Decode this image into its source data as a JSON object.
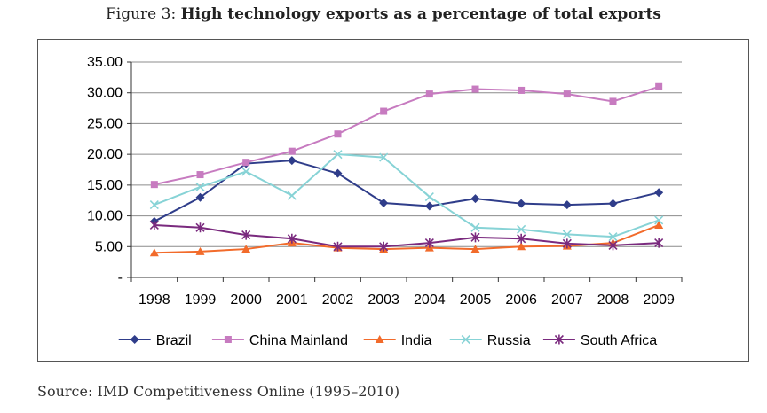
{
  "figure": {
    "caption_prefix": "Figure 3:",
    "caption_title": "High technology exports as a percentage of total exports",
    "source": "Source: IMD Competitiveness Online (1995–2010)"
  },
  "chart_data": {
    "type": "line",
    "title": "High technology exports as a percentage of total exports",
    "xlabel": "",
    "ylabel": "",
    "categories": [
      "1998",
      "1999",
      "2000",
      "2001",
      "2002",
      "2003",
      "2004",
      "2005",
      "2006",
      "2007",
      "2008",
      "2009"
    ],
    "ylim": [
      0,
      35
    ],
    "y_ticks": [
      0,
      5,
      10,
      15,
      20,
      25,
      30,
      35
    ],
    "y_tick_labels": [
      "-",
      "5.00",
      "10.00",
      "15.00",
      "20.00",
      "25.00",
      "30.00",
      "35.00"
    ],
    "grid": true,
    "legend_position": "bottom",
    "series": [
      {
        "name": "Brazil",
        "color": "#2f3d8a",
        "marker": "diamond",
        "values": [
          9.1,
          13.0,
          18.5,
          19.0,
          16.9,
          12.1,
          11.6,
          12.8,
          12.0,
          11.8,
          12.0,
          13.8
        ]
      },
      {
        "name": "China Mainland",
        "color": "#c77bc0",
        "marker": "square",
        "values": [
          15.1,
          16.7,
          18.7,
          20.5,
          23.3,
          27.0,
          29.8,
          30.6,
          30.4,
          29.8,
          28.6,
          31.0
        ]
      },
      {
        "name": "India",
        "color": "#f26b2b",
        "marker": "triangle",
        "values": [
          4.0,
          4.2,
          4.6,
          5.6,
          4.8,
          4.6,
          4.8,
          4.6,
          5.0,
          5.1,
          5.6,
          8.5
        ]
      },
      {
        "name": "Russia",
        "color": "#87d3d6",
        "marker": "x",
        "values": [
          11.8,
          14.7,
          17.2,
          13.3,
          20.0,
          19.5,
          13.1,
          8.1,
          7.8,
          7.0,
          6.6,
          9.3
        ]
      },
      {
        "name": "South Africa",
        "color": "#7a2a7e",
        "marker": "star",
        "values": [
          8.5,
          8.1,
          6.9,
          6.3,
          5.0,
          5.0,
          5.6,
          6.5,
          6.3,
          5.5,
          5.2,
          5.6
        ]
      }
    ]
  }
}
